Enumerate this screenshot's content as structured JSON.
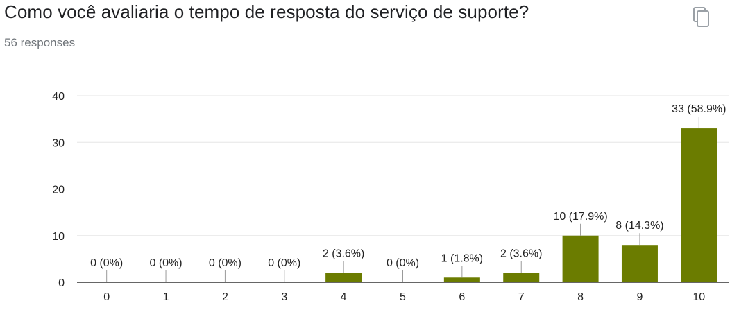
{
  "header": {
    "title": "Como você avaliaria o tempo de resposta do serviço de suporte?",
    "responses": "56 responses",
    "copy_icon": "copy-icon"
  },
  "colors": {
    "bar": "#6b7c00",
    "grid": "#e6e6e6",
    "axis": "#333333",
    "leader": "#999999"
  },
  "chart_data": {
    "type": "bar",
    "categories": [
      "0",
      "1",
      "2",
      "3",
      "4",
      "5",
      "6",
      "7",
      "8",
      "9",
      "10"
    ],
    "values": [
      0,
      0,
      0,
      0,
      2,
      0,
      1,
      2,
      10,
      8,
      33
    ],
    "data_labels": [
      "0 (0%)",
      "0 (0%)",
      "0 (0%)",
      "0 (0%)",
      "2 (3.6%)",
      "0 (0%)",
      "1 (1.8%)",
      "2 (3.6%)",
      "10 (17.9%)",
      "8 (14.3%)",
      "33 (58.9%)"
    ],
    "yticks": [
      "0",
      "10",
      "20",
      "30",
      "40"
    ],
    "ylim": [
      0,
      40
    ],
    "grid": true,
    "title": "",
    "xlabel": "",
    "ylabel": ""
  }
}
